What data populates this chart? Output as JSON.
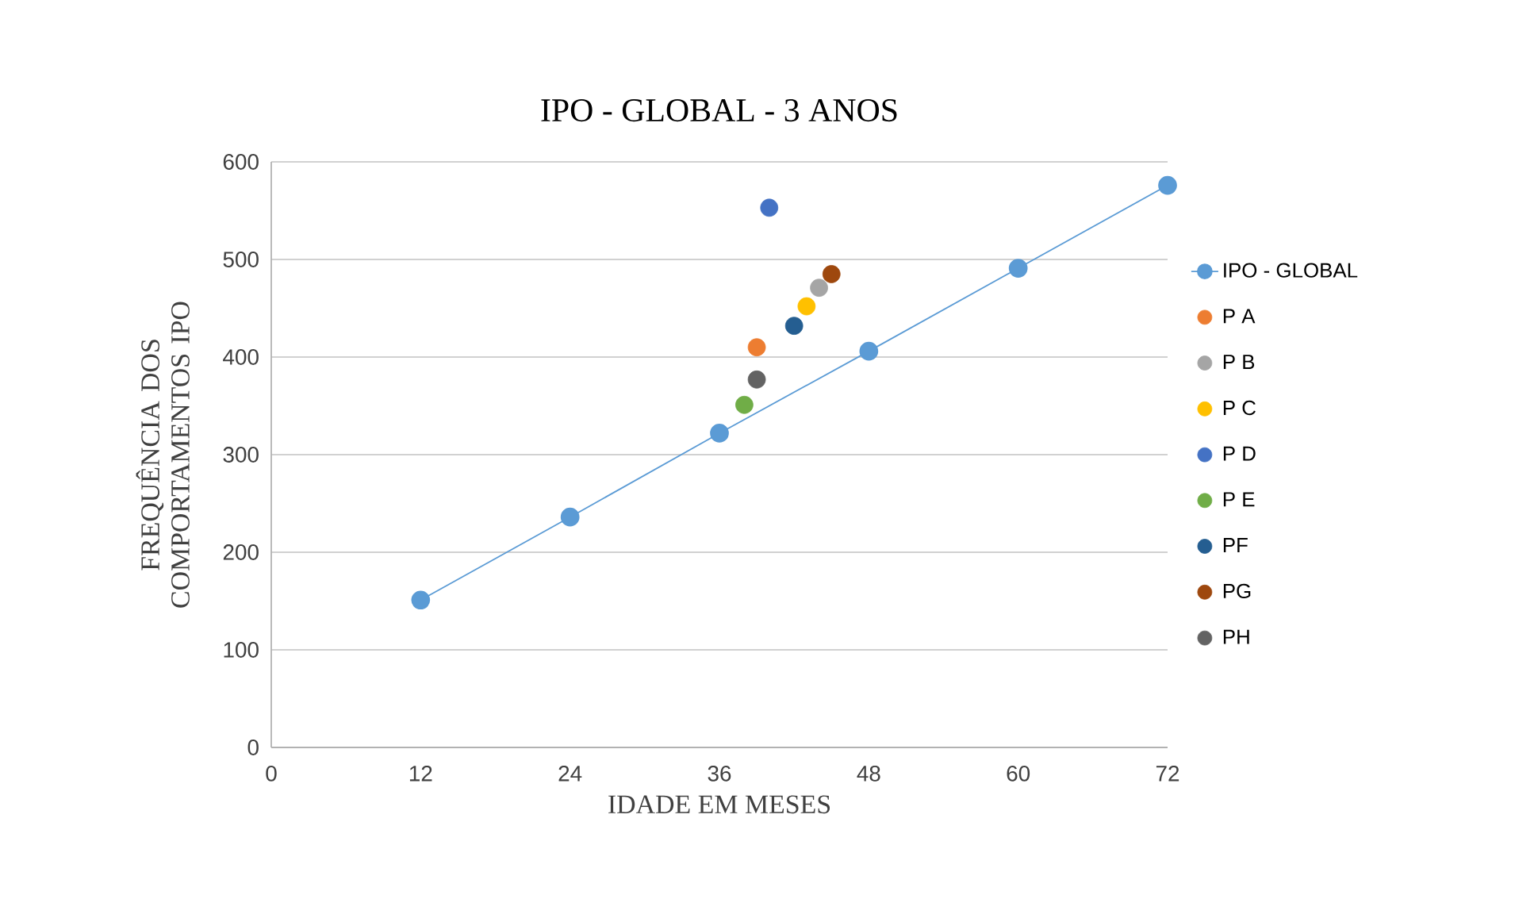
{
  "chart_data": {
    "type": "scatter",
    "title": "IPO - GLOBAL - 3 ANOS",
    "xlabel": "IDADE EM MESES",
    "ylabel": "FREQUÊNCIA DOS COMPORTAMENTOS IPO",
    "xlim": [
      0,
      72
    ],
    "xticks": [
      0,
      12,
      24,
      36,
      48,
      60,
      72
    ],
    "ylim": [
      0,
      600
    ],
    "yticks": [
      0,
      100,
      200,
      300,
      400,
      500,
      600
    ],
    "grid": "y",
    "legend": "right",
    "marker": "circle",
    "series": [
      {
        "name": "IPO - GLOBAL",
        "type": "line",
        "color": "#5b9bd5",
        "x": [
          12,
          24,
          36,
          48,
          60,
          72
        ],
        "values": [
          151,
          236,
          322,
          406,
          491,
          576
        ]
      },
      {
        "name": "P A",
        "color": "#ed7d31",
        "x": [
          39
        ],
        "values": [
          410
        ]
      },
      {
        "name": "P B",
        "color": "#a5a5a5",
        "x": [
          44
        ],
        "values": [
          471
        ]
      },
      {
        "name": "P C",
        "color": "#ffc000",
        "x": [
          43
        ],
        "values": [
          452
        ]
      },
      {
        "name": "P D",
        "color": "#4472c4",
        "x": [
          40
        ],
        "values": [
          553
        ]
      },
      {
        "name": "P E",
        "color": "#70ad47",
        "x": [
          38
        ],
        "values": [
          351
        ]
      },
      {
        "name": "PF",
        "color": "#255e91",
        "x": [
          42
        ],
        "values": [
          432
        ]
      },
      {
        "name": "PG",
        "color": "#9e480e",
        "x": [
          45
        ],
        "values": [
          485
        ]
      },
      {
        "name": "PH",
        "color": "#636363",
        "x": [
          39
        ],
        "values": [
          377
        ]
      }
    ]
  }
}
